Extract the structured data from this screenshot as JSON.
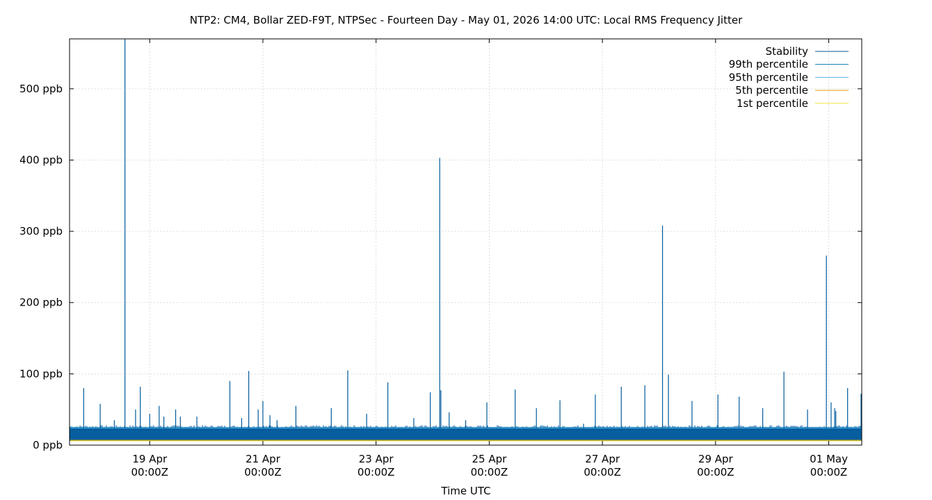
{
  "chart_data": {
    "type": "line",
    "title": "NTP2: CM4, Bollar ZED-F9T, NTPSec - Fourteen Day - May 01, 2026 14:00 UTC: Local RMS Frequency Jitter",
    "xlabel": "Time UTC",
    "ylabel": "",
    "xlim": [
      "2026-04-17T14:00Z",
      "2026-05-01T14:00Z"
    ],
    "ylim": [
      0,
      570
    ],
    "y_unit": "ppb",
    "grid": true,
    "legend_position": "top-right",
    "x_ticks": [
      {
        "date": "2026-04-19T00:00Z",
        "label_line1": "19 Apr",
        "label_line2": "00:00Z"
      },
      {
        "date": "2026-04-21T00:00Z",
        "label_line1": "21 Apr",
        "label_line2": "00:00Z"
      },
      {
        "date": "2026-04-23T00:00Z",
        "label_line1": "23 Apr",
        "label_line2": "00:00Z"
      },
      {
        "date": "2026-04-25T00:00Z",
        "label_line1": "25 Apr",
        "label_line2": "00:00Z"
      },
      {
        "date": "2026-04-27T00:00Z",
        "label_line1": "27 Apr",
        "label_line2": "00:00Z"
      },
      {
        "date": "2026-04-29T00:00Z",
        "label_line1": "29 Apr",
        "label_line2": "00:00Z"
      },
      {
        "date": "2026-05-01T00:00Z",
        "label_line1": "01 May",
        "label_line2": "00:00Z"
      }
    ],
    "y_ticks": [
      {
        "value": 0,
        "label": "0 ppb"
      },
      {
        "value": 100,
        "label": "100 ppb"
      },
      {
        "value": 200,
        "label": "200 ppb"
      },
      {
        "value": 300,
        "label": "300 ppb"
      },
      {
        "value": 400,
        "label": "400 ppb"
      },
      {
        "value": 500,
        "label": "500 ppb"
      }
    ],
    "series": [
      {
        "name": "Stability",
        "color": "#005a9c",
        "baseline_band": [
          6,
          24
        ],
        "spikes": [
          {
            "t": "2026-04-17T20:00Z",
            "v": 80
          },
          {
            "t": "2026-04-18T03:00Z",
            "v": 58
          },
          {
            "t": "2026-04-18T09:00Z",
            "v": 35
          },
          {
            "t": "2026-04-18T13:30Z",
            "v": 570
          },
          {
            "t": "2026-04-18T18:00Z",
            "v": 50
          },
          {
            "t": "2026-04-18T20:00Z",
            "v": 82
          },
          {
            "t": "2026-04-19T00:00Z",
            "v": 44
          },
          {
            "t": "2026-04-19T04:00Z",
            "v": 55
          },
          {
            "t": "2026-04-19T06:00Z",
            "v": 40
          },
          {
            "t": "2026-04-19T11:00Z",
            "v": 50
          },
          {
            "t": "2026-04-19T13:00Z",
            "v": 40
          },
          {
            "t": "2026-04-19T20:00Z",
            "v": 40
          },
          {
            "t": "2026-04-20T10:00Z",
            "v": 90
          },
          {
            "t": "2026-04-20T15:00Z",
            "v": 38
          },
          {
            "t": "2026-04-20T18:00Z",
            "v": 104
          },
          {
            "t": "2026-04-20T22:00Z",
            "v": 50
          },
          {
            "t": "2026-04-21T00:00Z",
            "v": 62
          },
          {
            "t": "2026-04-21T03:00Z",
            "v": 42
          },
          {
            "t": "2026-04-21T06:00Z",
            "v": 35
          },
          {
            "t": "2026-04-21T14:00Z",
            "v": 55
          },
          {
            "t": "2026-04-22T05:00Z",
            "v": 52
          },
          {
            "t": "2026-04-22T12:00Z",
            "v": 105
          },
          {
            "t": "2026-04-22T20:00Z",
            "v": 44
          },
          {
            "t": "2026-04-23T05:00Z",
            "v": 88
          },
          {
            "t": "2026-04-23T16:00Z",
            "v": 38
          },
          {
            "t": "2026-04-23T23:00Z",
            "v": 74
          },
          {
            "t": "2026-04-24T03:00Z",
            "v": 403
          },
          {
            "t": "2026-04-24T03:30Z",
            "v": 77
          },
          {
            "t": "2026-04-24T07:00Z",
            "v": 46
          },
          {
            "t": "2026-04-24T14:00Z",
            "v": 35
          },
          {
            "t": "2026-04-24T23:00Z",
            "v": 60
          },
          {
            "t": "2026-04-25T11:00Z",
            "v": 78
          },
          {
            "t": "2026-04-25T20:00Z",
            "v": 52
          },
          {
            "t": "2026-04-26T06:00Z",
            "v": 63
          },
          {
            "t": "2026-04-26T16:00Z",
            "v": 30
          },
          {
            "t": "2026-04-26T21:00Z",
            "v": 71
          },
          {
            "t": "2026-04-27T08:00Z",
            "v": 82
          },
          {
            "t": "2026-04-27T18:00Z",
            "v": 84
          },
          {
            "t": "2026-04-28T01:30Z",
            "v": 308
          },
          {
            "t": "2026-04-28T04:00Z",
            "v": 99
          },
          {
            "t": "2026-04-28T14:00Z",
            "v": 62
          },
          {
            "t": "2026-04-29T01:00Z",
            "v": 71
          },
          {
            "t": "2026-04-29T10:00Z",
            "v": 68
          },
          {
            "t": "2026-04-29T20:00Z",
            "v": 52
          },
          {
            "t": "2026-04-30T05:00Z",
            "v": 103
          },
          {
            "t": "2026-04-30T15:00Z",
            "v": 50
          },
          {
            "t": "2026-04-31T01:00Z",
            "v": 60
          },
          {
            "t": "2026-05-01T03:00Z",
            "v": 48
          }
        ]
      },
      {
        "name": "99th percentile",
        "color": "#0072b2",
        "value": 25
      },
      {
        "name": "95th percentile",
        "color": "#56b4e9",
        "value": 24
      },
      {
        "name": "5th percentile",
        "color": "#e69f00",
        "value": 7
      },
      {
        "name": "1st percentile",
        "color": "#f0e442",
        "value": 6
      }
    ],
    "extra_spikes": [
      {
        "t": "2026-04-30T23:00Z",
        "v": 266
      },
      {
        "t": "2026-05-01T02:30Z",
        "v": 52
      },
      {
        "t": "2026-05-01T08:00Z",
        "v": 80
      },
      {
        "t": "2026-05-01T14:00Z",
        "v": 72
      }
    ]
  }
}
